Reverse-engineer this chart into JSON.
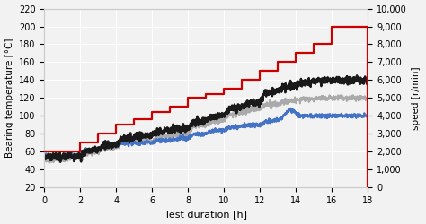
{
  "title": "",
  "xlabel": "Test duration [h]",
  "ylabel_left": "Bearing temperature [°C]",
  "ylabel_right": "speed [r/min]",
  "xlim": [
    0,
    18
  ],
  "ylim_left": [
    20,
    220
  ],
  "ylim_right": [
    0,
    10000
  ],
  "xticks": [
    0,
    2,
    4,
    6,
    8,
    10,
    12,
    14,
    16,
    18
  ],
  "yticks_left": [
    20,
    40,
    60,
    80,
    100,
    120,
    140,
    160,
    180,
    200,
    220
  ],
  "yticks_right": [
    0,
    1000,
    2000,
    3000,
    4000,
    5000,
    6000,
    7000,
    8000,
    9000,
    10000
  ],
  "background_color": "#f2f2f2",
  "grid_color": "#ffffff",
  "red_step_hours": [
    0,
    1,
    2,
    3,
    4,
    5,
    6,
    7,
    8,
    9,
    10,
    11,
    12,
    13,
    14,
    15,
    16,
    17.95,
    18
  ],
  "red_step_speeds": [
    2000,
    2000,
    2500,
    3000,
    3500,
    3800,
    4200,
    4500,
    5000,
    5200,
    5500,
    6000,
    6500,
    7000,
    7500,
    8000,
    9000,
    9000,
    0
  ],
  "black_step_temps": [
    55,
    54,
    55,
    62,
    68,
    76,
    78,
    84,
    86,
    95,
    100,
    110,
    115,
    128,
    133,
    138,
    140,
    140
  ],
  "gray_step_temps": [
    52,
    51,
    53,
    60,
    65,
    72,
    72,
    78,
    80,
    90,
    95,
    103,
    108,
    113,
    117,
    119,
    120,
    120
  ],
  "blue_step_temps": [
    57,
    55,
    56,
    62,
    67,
    70,
    70,
    73,
    75,
    80,
    84,
    88,
    90,
    95,
    100,
    100,
    100,
    100
  ],
  "step_hours": [
    0,
    1,
    2,
    3,
    4,
    5,
    6,
    7,
    8,
    9,
    10,
    11,
    12,
    13,
    14,
    15,
    16,
    17.95
  ],
  "black_color": "#1a1a1a",
  "gray_color": "#aaaaaa",
  "blue_color": "#4472c4",
  "red_color": "#cc0000",
  "black_lw": 1.8,
  "gray_lw": 1.4,
  "blue_lw": 1.4,
  "red_lw": 1.6
}
